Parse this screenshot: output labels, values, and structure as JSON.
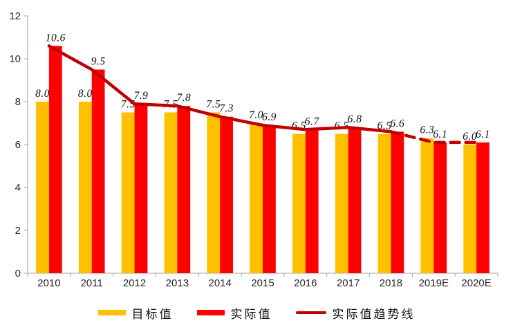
{
  "chart_data": {
    "type": "bar+line combo",
    "categories": [
      "2010",
      "2011",
      "2012",
      "2013",
      "2014",
      "2015",
      "2016",
      "2017",
      "2018",
      "2019E",
      "2020E"
    ],
    "series": [
      {
        "name": "目标值",
        "kind": "bar",
        "color": "#FFC000",
        "values": [
          8.0,
          8.0,
          7.5,
          7.5,
          7.5,
          7.0,
          6.5,
          6.5,
          6.5,
          6.3,
          6.0
        ]
      },
      {
        "name": "实际值",
        "kind": "bar",
        "color": "#FF0000",
        "values": [
          10.6,
          9.5,
          7.9,
          7.8,
          7.3,
          6.9,
          6.7,
          6.8,
          6.6,
          6.1,
          6.1
        ]
      },
      {
        "name": "实际值趋势线",
        "kind": "line",
        "color": "#C00000",
        "values": [
          10.6,
          9.5,
          7.9,
          7.8,
          7.3,
          6.9,
          6.7,
          6.8,
          6.6,
          6.1,
          6.1
        ],
        "dashed_from_index": 8
      }
    ],
    "ylim": [
      0,
      12
    ],
    "yticks": [
      0,
      2,
      4,
      6,
      8,
      10,
      12
    ],
    "grid": false,
    "data_labels": true,
    "data_label_decimals": 1,
    "legend_position": "bottom",
    "axis_color": "#a6a6a6",
    "text_color": "#262626"
  }
}
